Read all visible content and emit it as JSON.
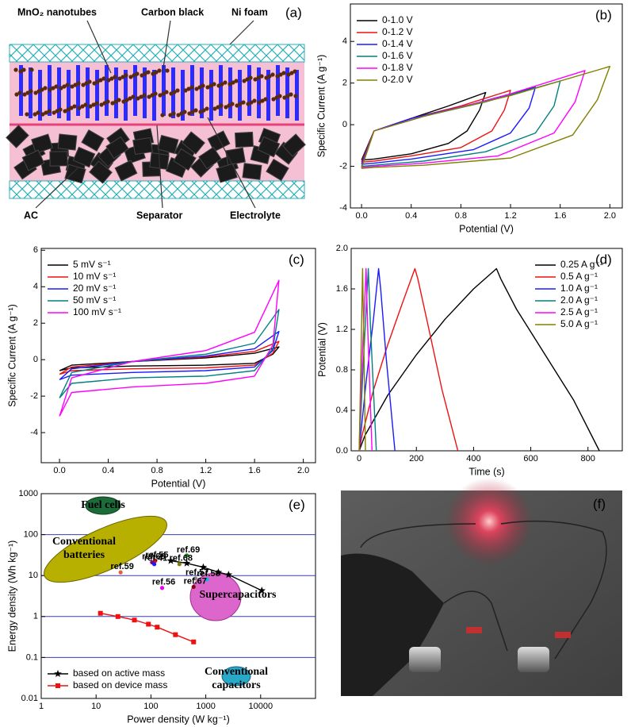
{
  "schematic": {
    "panel_label": "(a)",
    "mno2": "MnO₂ nanotubes",
    "carbon": "Carbon black",
    "ni_foam": "Ni foam",
    "ac": "AC",
    "separator": "Separator",
    "electrolyte": "Electrolyte"
  },
  "photo": {
    "panel_label": "(f)"
  },
  "chart_data": [
    {
      "type": "line",
      "panel_label": "(b)",
      "x_label": "Potential (V)",
      "y_label": "Specific Current (A g⁻¹)",
      "xlim": [
        -0.09,
        2.1
      ],
      "ylim": [
        -4,
        5.8
      ],
      "xticks": [
        {
          "value": 0,
          "label": "0.0"
        },
        0.4,
        0.8,
        1.2,
        1.6,
        {
          "value": 2,
          "label": "2.0"
        }
      ],
      "yticks": [
        -4,
        -2,
        0,
        2,
        4
      ],
      "legend": "upper left",
      "series": [
        {
          "name": "0-1.0 V",
          "color": "#000000",
          "x": [
            0,
            0.1,
            0.4,
            0.7,
            1.0,
            0.95,
            0.85,
            0.7,
            0.4,
            0.1,
            0
          ],
          "values": [
            -1.7,
            -0.3,
            0.3,
            0.9,
            1.55,
            0.7,
            -0.3,
            -0.9,
            -1.4,
            -1.65,
            -1.7
          ]
        },
        {
          "name": "0-1.2 V",
          "color": "#ee1111",
          "x": [
            0,
            0.1,
            0.4,
            0.8,
            1.2,
            1.15,
            1.05,
            0.8,
            0.4,
            0.1,
            0
          ],
          "values": [
            -1.8,
            -0.3,
            0.3,
            0.9,
            1.65,
            0.7,
            -0.3,
            -1.1,
            -1.5,
            -1.75,
            -1.8
          ]
        },
        {
          "name": "0-1.4 V",
          "color": "#1a1aff",
          "x": [
            0,
            0.1,
            0.4,
            0.9,
            1.4,
            1.35,
            1.2,
            0.9,
            0.4,
            0.1,
            0
          ],
          "values": [
            -1.9,
            -0.3,
            0.3,
            1.0,
            1.8,
            0.8,
            -0.4,
            -1.2,
            -1.65,
            -1.85,
            -1.9
          ]
        },
        {
          "name": "0-1.6 V",
          "color": "#008080",
          "x": [
            0,
            0.1,
            0.5,
            1.0,
            1.6,
            1.55,
            1.4,
            1.0,
            0.5,
            0.1,
            0
          ],
          "values": [
            -2.0,
            -0.3,
            0.4,
            1.1,
            2.1,
            0.9,
            -0.4,
            -1.3,
            -1.75,
            -1.95,
            -2.0
          ]
        },
        {
          "name": "0-1.8 V",
          "color": "#ff00ff",
          "x": [
            0,
            0.1,
            0.5,
            1.1,
            1.8,
            1.72,
            1.55,
            1.1,
            0.5,
            0.1,
            0
          ],
          "values": [
            -2.05,
            -0.3,
            0.4,
            1.3,
            2.6,
            1.1,
            -0.4,
            -1.5,
            -1.85,
            -2.0,
            -2.05
          ]
        },
        {
          "name": "0-2.0 V",
          "color": "#808000",
          "x": [
            0,
            0.1,
            0.5,
            1.2,
            2.0,
            1.9,
            1.7,
            1.2,
            0.5,
            0.1,
            0
          ],
          "values": [
            -2.1,
            -0.3,
            0.4,
            1.4,
            2.8,
            1.2,
            -0.5,
            -1.6,
            -1.95,
            -2.05,
            -2.1
          ]
        }
      ]
    },
    {
      "type": "line",
      "panel_label": "(c)",
      "x_label": "Potential (V)",
      "y_label": "Specific Current (A g⁻¹)",
      "xlim": [
        -0.15,
        2.1
      ],
      "ylim": [
        -5.65,
        6.1
      ],
      "xticks": [
        {
          "value": 0,
          "label": "0.0"
        },
        0.4,
        0.8,
        1.2,
        1.6,
        {
          "value": 2,
          "label": "2.0"
        }
      ],
      "yticks": [
        -4,
        -2,
        0,
        2,
        4,
        6
      ],
      "legend": "upper left",
      "series": [
        {
          "name": "5 mV s⁻¹",
          "color": "#000000",
          "x": [
            0,
            0.1,
            0.6,
            1.2,
            1.6,
            1.8,
            1.75,
            1.6,
            1.2,
            0.6,
            0.1,
            0
          ],
          "values": [
            -0.6,
            -0.3,
            -0.1,
            0.1,
            0.35,
            0.7,
            0.3,
            -0.2,
            -0.3,
            -0.35,
            -0.45,
            -0.6
          ]
        },
        {
          "name": "10 mV s⁻¹",
          "color": "#ee1111",
          "x": [
            0,
            0.1,
            0.6,
            1.2,
            1.6,
            1.8,
            1.75,
            1.6,
            1.2,
            0.6,
            0.1,
            0
          ],
          "values": [
            -0.8,
            -0.4,
            -0.1,
            0.15,
            0.45,
            1.0,
            0.35,
            -0.3,
            -0.45,
            -0.5,
            -0.6,
            -0.8
          ]
        },
        {
          "name": "20 mV s⁻¹",
          "color": "#1a1aff",
          "x": [
            0,
            0.1,
            0.6,
            1.2,
            1.6,
            1.8,
            1.75,
            1.6,
            1.2,
            0.6,
            0.1,
            0
          ],
          "values": [
            -1.1,
            -0.5,
            -0.1,
            0.2,
            0.6,
            1.55,
            0.5,
            -0.4,
            -0.6,
            -0.7,
            -0.85,
            -1.1
          ]
        },
        {
          "name": "50 mV s⁻¹",
          "color": "#008080",
          "x": [
            0,
            0.1,
            0.6,
            1.2,
            1.6,
            1.8,
            1.75,
            1.6,
            1.2,
            0.6,
            0.1,
            0
          ],
          "values": [
            -2.1,
            -0.7,
            -0.1,
            0.3,
            0.9,
            2.75,
            0.6,
            -0.6,
            -0.9,
            -1.0,
            -1.3,
            -2.1
          ]
        },
        {
          "name": "100 mV s⁻¹",
          "color": "#ff00ff",
          "x": [
            0,
            0.1,
            0.6,
            1.2,
            1.6,
            1.8,
            1.75,
            1.6,
            1.2,
            0.6,
            0.1,
            0
          ],
          "values": [
            -3.1,
            -1.0,
            -0.1,
            0.5,
            1.5,
            4.35,
            0.8,
            -0.9,
            -1.3,
            -1.5,
            -1.8,
            -3.1
          ]
        }
      ]
    },
    {
      "type": "line",
      "panel_label": "(d)",
      "x_label": "Time (s)",
      "y_label": "Potential (V)",
      "xlim": [
        -28,
        920
      ],
      "ylim": [
        0,
        2
      ],
      "xticks": [
        0,
        200,
        400,
        600,
        800
      ],
      "yticks": [
        {
          "value": 0,
          "label": "0.0"
        },
        0.4,
        0.8,
        1.2,
        1.6,
        {
          "value": 2,
          "label": "2.0"
        }
      ],
      "legend": "upper right",
      "series": [
        {
          "name": "0.25 A g⁻¹",
          "color": "#000000",
          "x": [
            0,
            20,
            100,
            200,
            300,
            400,
            480,
            495,
            550,
            650,
            750,
            840
          ],
          "values": [
            0,
            0.15,
            0.55,
            0.95,
            1.3,
            1.6,
            1.8,
            1.7,
            1.4,
            0.95,
            0.5,
            0
          ]
        },
        {
          "name": "0.5 A g⁻¹",
          "color": "#ee1111",
          "x": [
            0,
            10,
            50,
            100,
            150,
            195,
            205,
            240,
            290,
            345
          ],
          "values": [
            0,
            0.15,
            0.6,
            1.05,
            1.45,
            1.8,
            1.7,
            1.25,
            0.6,
            0
          ]
        },
        {
          "name": "1.0 A g⁻¹",
          "color": "#1a1aff",
          "x": [
            0,
            5,
            25,
            50,
            68,
            75,
            95,
            125
          ],
          "values": [
            0,
            0.15,
            0.7,
            1.3,
            1.8,
            1.6,
            0.9,
            0
          ]
        },
        {
          "name": "2.0 A g⁻¹",
          "color": "#008080",
          "x": [
            0,
            3,
            17,
            32,
            40,
            60
          ],
          "values": [
            0,
            0.2,
            1.0,
            1.8,
            1.2,
            0
          ]
        },
        {
          "name": "2.5 A g⁻¹",
          "color": "#ff00ff",
          "x": [
            0,
            2,
            12,
            24,
            30,
            45
          ],
          "values": [
            0,
            0.2,
            1.0,
            1.8,
            1.2,
            0
          ]
        },
        {
          "name": "5.0 A g⁻¹",
          "color": "#808000",
          "x": [
            0,
            6,
            12,
            16,
            22
          ],
          "values": [
            0,
            0.9,
            1.8,
            1.1,
            0
          ]
        }
      ]
    },
    {
      "type": "line",
      "panel_label": "(e)",
      "x_label": "Power density (W kg⁻¹)",
      "y_label": "Energy density (Wh kg⁻¹)",
      "log_scale": true,
      "grid": "y",
      "grid_color": "#3b3bb0",
      "xlim": [
        1,
        100000
      ],
      "ylim": [
        0.01,
        1000
      ],
      "xticks": [
        1,
        10,
        100,
        1000,
        10000
      ],
      "yticks": [
        0.01,
        0.1,
        1,
        10,
        100,
        1000
      ],
      "legend": "lower left",
      "annotations": {
        "fuel_cells": "Fuel cells",
        "batteries": [
          "Conventional",
          "batteries"
        ],
        "supercapacitors": "Supercapacitors",
        "capacitors": [
          "Conventional",
          "capacitors"
        ]
      },
      "series": [
        {
          "name": "based on active mass",
          "color": "#000000",
          "marker": "star",
          "x": [
            230,
            450,
            900,
            1700,
            2600,
            10500
          ],
          "values": [
            23,
            20,
            16,
            12,
            10.5,
            4.3
          ]
        },
        {
          "name": "based on device mass",
          "color": "#ee1111",
          "marker": "square",
          "x": [
            12,
            25,
            50,
            90,
            130,
            280,
            600
          ],
          "values": [
            1.2,
            1.0,
            0.82,
            0.65,
            0.55,
            0.36,
            0.24
          ]
        }
      ],
      "references": {
        "labels": [
          "ref.55",
          "ref.69",
          "ref.66",
          "ref.41",
          "ref.68",
          "ref.57",
          "ref.59",
          "ref.58",
          "ref.56",
          "ref.67"
        ],
        "x": [
          120,
          450,
          105,
          115,
          330,
          650,
          28,
          1050,
          160,
          600
        ],
        "values": [
          23,
          31,
          21,
          19,
          19,
          8.5,
          12,
          8,
          5,
          5.3
        ],
        "colors": [
          "#e01010",
          "#1a8a1a",
          "#800080",
          "#1a1aff",
          "#808000",
          "#888888",
          "#e06040",
          "#00c0e0",
          "#ee00ee",
          "#8b0000"
        ]
      }
    }
  ]
}
